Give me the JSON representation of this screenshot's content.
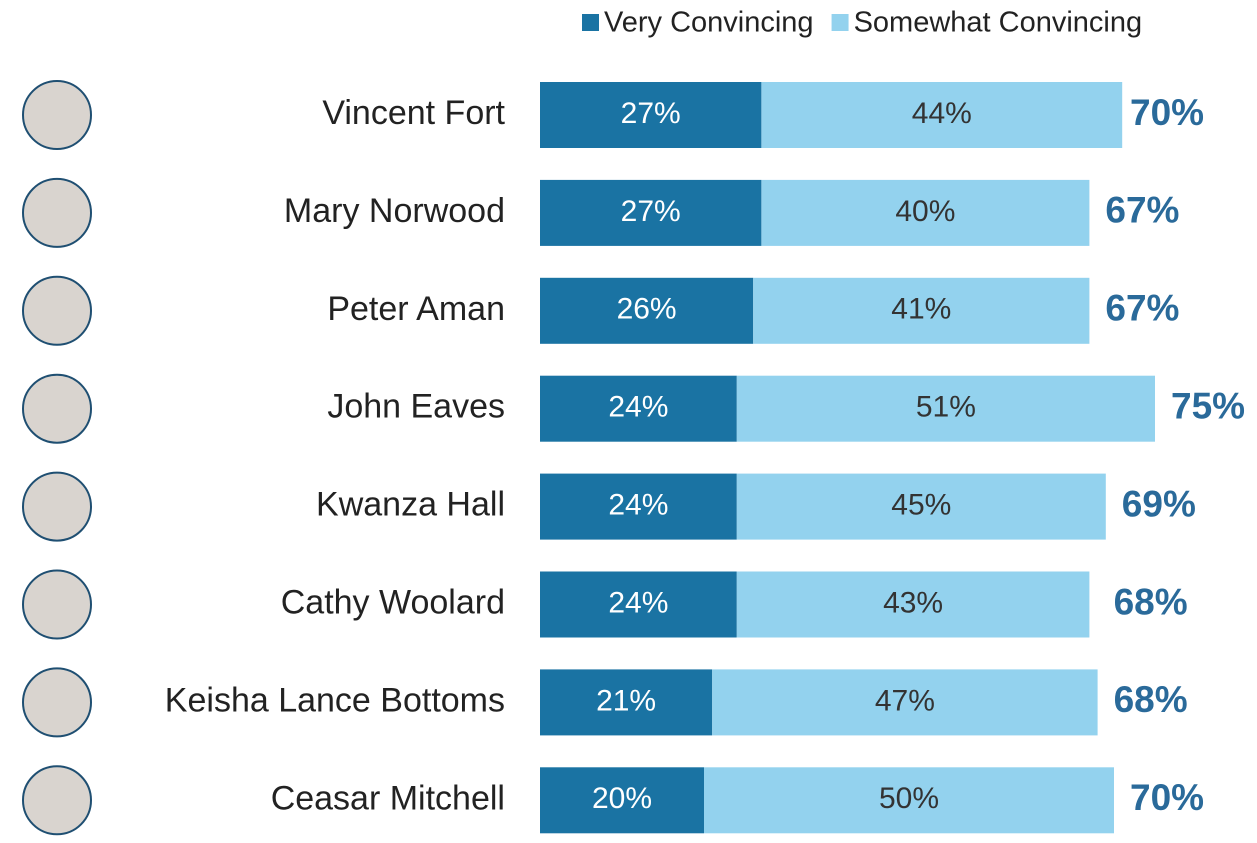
{
  "chart_data": {
    "type": "stacked-bar",
    "categories": [
      "Vincent Fort",
      "Mary Norwood",
      "Peter Aman",
      "John Eaves",
      "Kwanza Hall",
      "Cathy Woolard",
      "Keisha Lance Bottoms",
      "Ceasar Mitchell"
    ],
    "series": [
      {
        "name": "Very Convincing",
        "color": "#1a73a3",
        "values": [
          27,
          27,
          26,
          24,
          24,
          24,
          21,
          20
        ],
        "value_labels": [
          "27%",
          "27%",
          "26%",
          "24%",
          "24%",
          "24%",
          "21%",
          "20%"
        ]
      },
      {
        "name": "Somewhat Convincing",
        "color": "#93d2ee",
        "values": [
          44,
          40,
          41,
          51,
          45,
          43,
          47,
          50
        ],
        "value_labels": [
          "44%",
          "40%",
          "41%",
          "51%",
          "45%",
          "43%",
          "47%",
          "50%"
        ]
      }
    ],
    "totals": [
      70,
      67,
      67,
      75,
      69,
      68,
      68,
      70
    ],
    "total_labels": [
      "70%",
      "67%",
      "67%",
      "75%",
      "69%",
      "68%",
      "68%",
      "70%"
    ]
  }
}
